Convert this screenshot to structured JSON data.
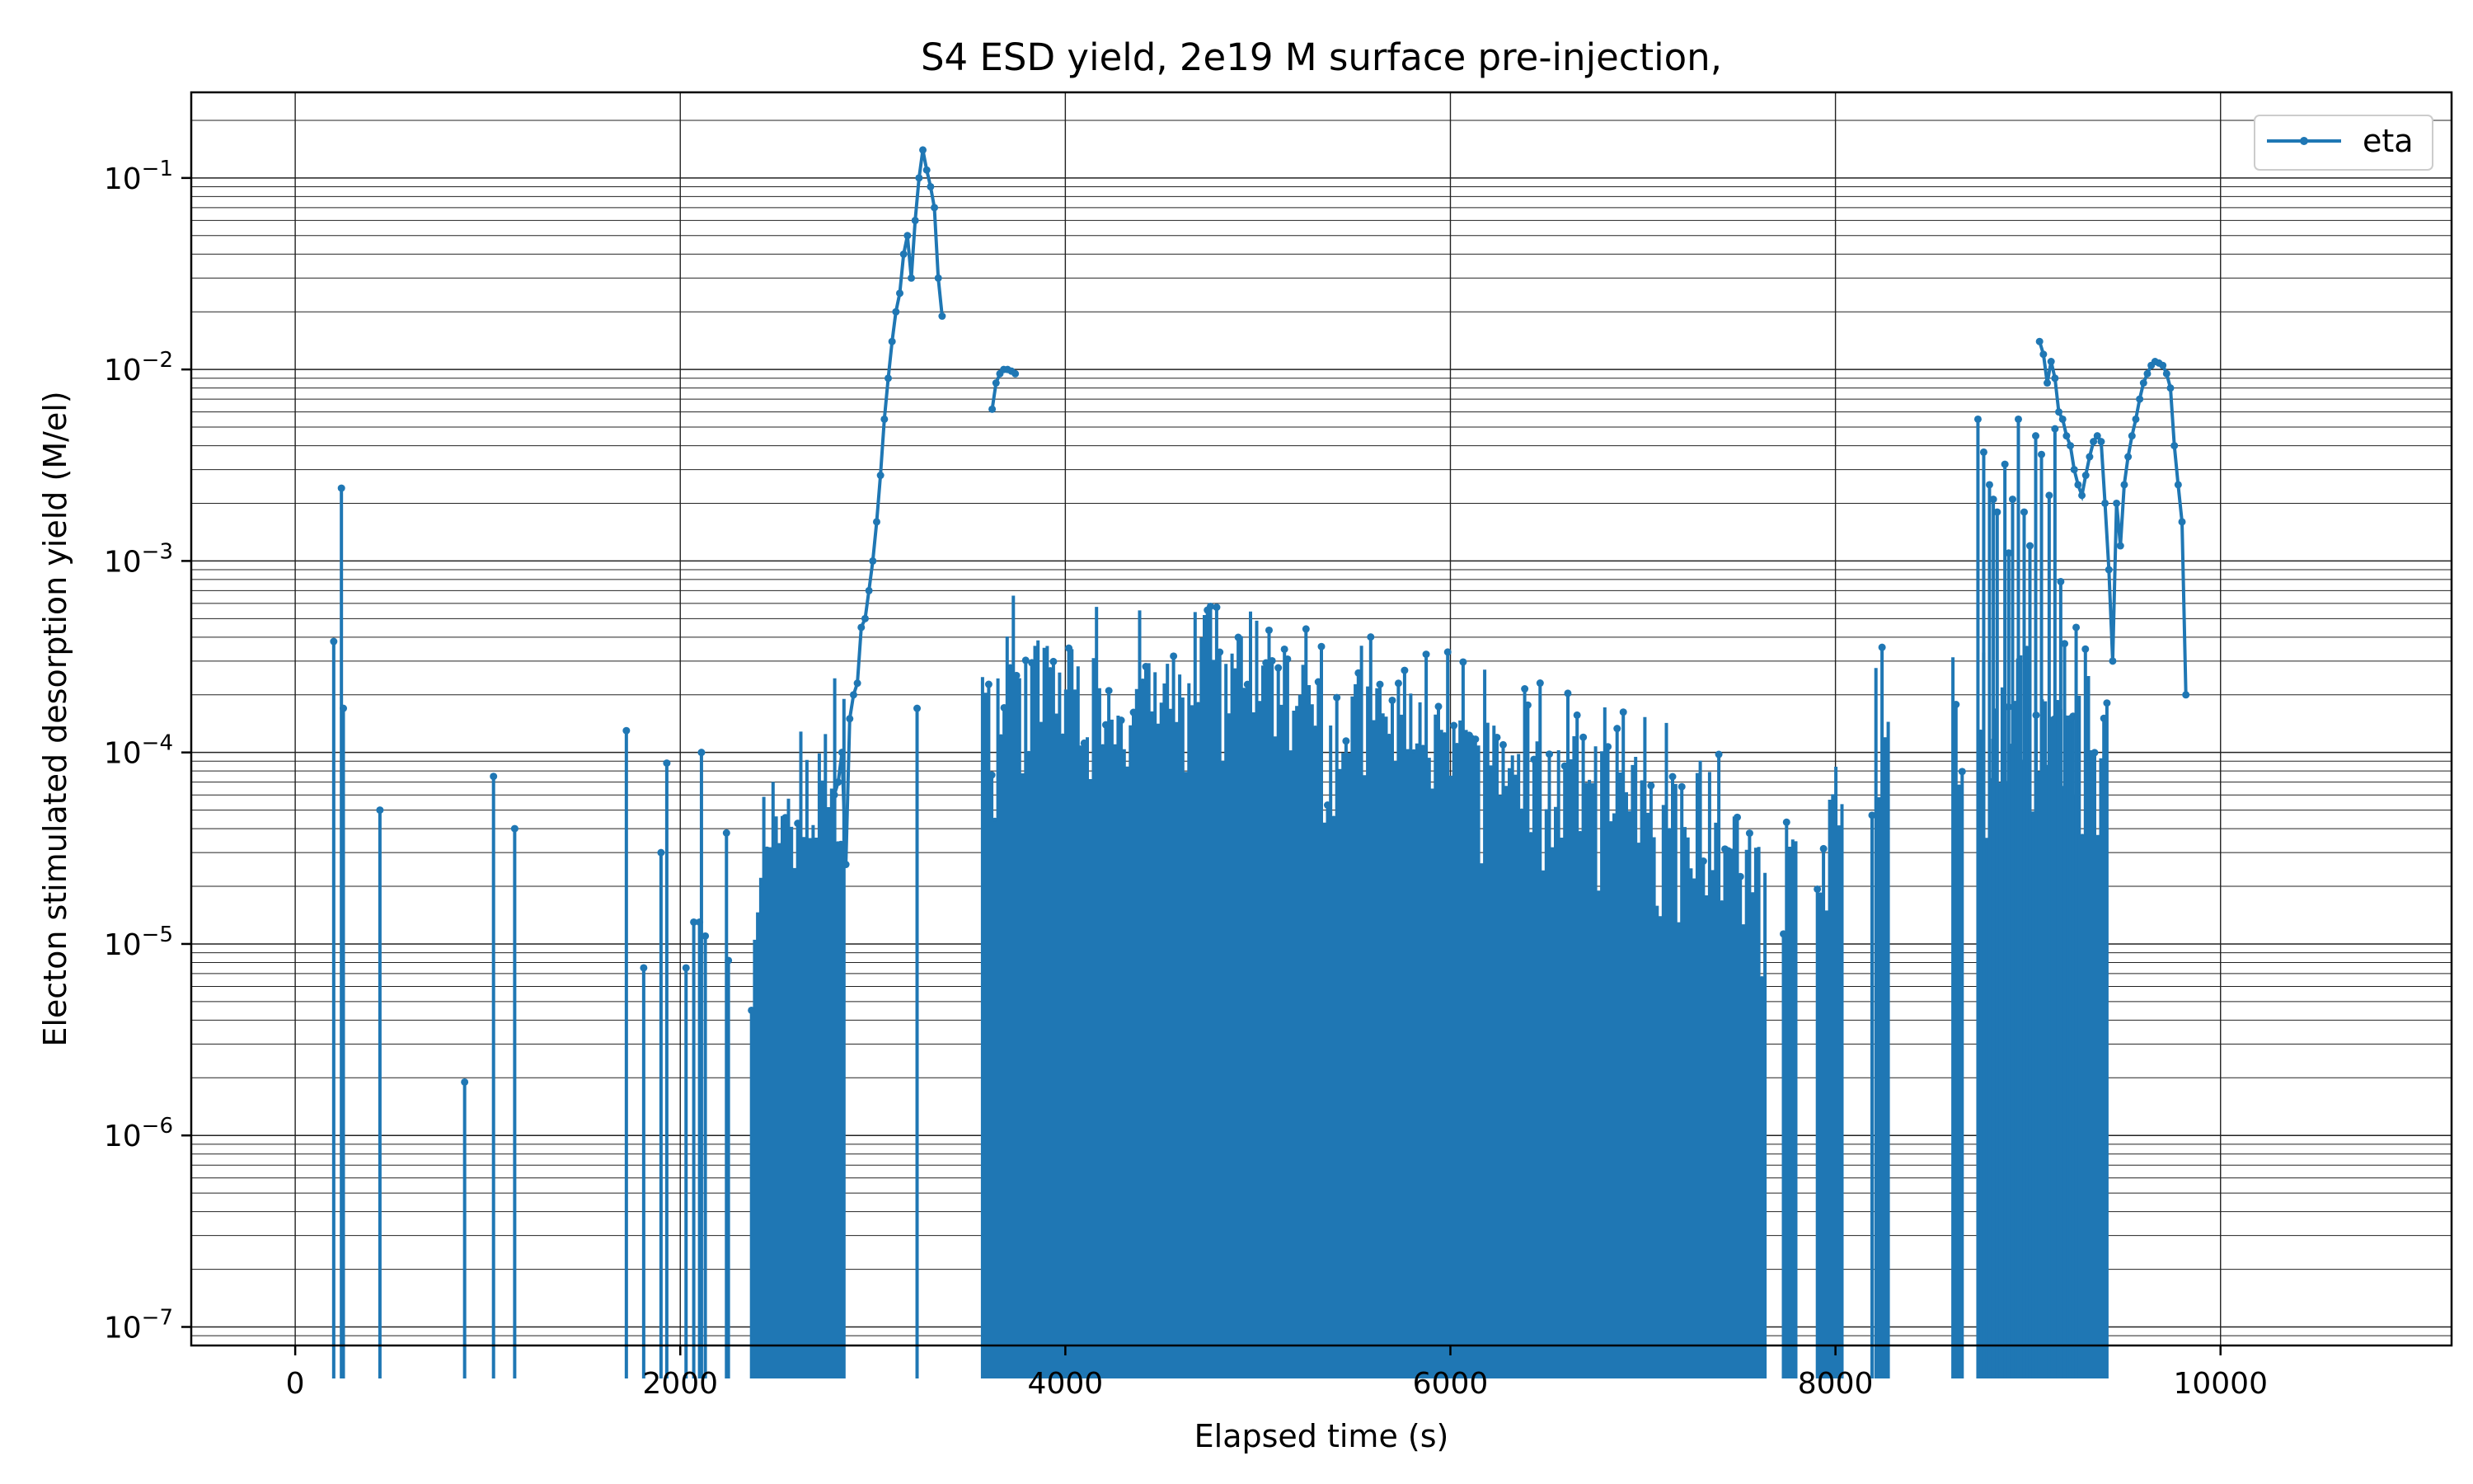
{
  "chart_data": {
    "type": "line",
    "title": "S4 ESD yield, 2e19 M surface pre-injection,",
    "xlabel": "Elapsed time (s)",
    "ylabel": "Electon stimulated desorption yield (M/el)",
    "xlim": [
      -540,
      11200
    ],
    "ylim": [
      8e-08,
      0.28
    ],
    "yscale": "log",
    "grid": "both-major-and-minor",
    "legend_position": "top-right",
    "series_color": "#1f77b4",
    "x_ticks": [
      {
        "value": 0,
        "label": "0"
      },
      {
        "value": 2000,
        "label": "2000"
      },
      {
        "value": 4000,
        "label": "4000"
      },
      {
        "value": 6000,
        "label": "6000"
      },
      {
        "value": 8000,
        "label": "8000"
      },
      {
        "value": 10000,
        "label": "10000"
      }
    ],
    "y_ticks": [
      {
        "exp": -7,
        "label": "10",
        "sup": "−7"
      },
      {
        "exp": -6,
        "label": "10",
        "sup": "−6"
      },
      {
        "exp": -5,
        "label": "10",
        "sup": "−5"
      },
      {
        "exp": -4,
        "label": "10",
        "sup": "−4"
      },
      {
        "exp": -3,
        "label": "10",
        "sup": "−3"
      },
      {
        "exp": -2,
        "label": "10",
        "sup": "−2"
      },
      {
        "exp": -1,
        "label": "10",
        "sup": "−1"
      }
    ],
    "series": [
      {
        "name": "eta",
        "marker": "dot",
        "spikes": [
          [
            200,
            0.00038
          ],
          [
            240,
            0.0024
          ],
          [
            250,
            0.00017
          ],
          [
            440,
            5e-05
          ],
          [
            880,
            1.9e-06
          ],
          [
            1030,
            7.5e-05
          ],
          [
            1140,
            4e-05
          ],
          [
            1720,
            0.00013
          ],
          [
            1810,
            7.5e-06
          ],
          [
            1900,
            3e-05
          ],
          [
            1930,
            8.8e-05
          ],
          [
            2030,
            7.5e-06
          ],
          [
            2070,
            1.3e-05
          ],
          [
            2100,
            1.3e-05
          ],
          [
            2110,
            0.0001
          ],
          [
            2130,
            1.1e-05
          ],
          [
            2240,
            3.8e-05
          ],
          [
            2250,
            8.2e-06
          ],
          [
            3230,
            0.00017
          ],
          [
            8190,
            4.7e-05
          ]
        ],
        "peak_1": [
          [
            2800,
            6e-05
          ],
          [
            2820,
            7e-05
          ],
          [
            2840,
            0.0001
          ],
          [
            2860,
            2.6e-05
          ],
          [
            2880,
            0.00015
          ],
          [
            2900,
            0.0002
          ],
          [
            2920,
            0.00023
          ],
          [
            2940,
            0.00045
          ],
          [
            2960,
            0.0005
          ],
          [
            2980,
            0.0007
          ],
          [
            3000,
            0.001
          ],
          [
            3020,
            0.0016
          ],
          [
            3040,
            0.0028
          ],
          [
            3060,
            0.0055
          ],
          [
            3080,
            0.009
          ],
          [
            3100,
            0.014
          ],
          [
            3120,
            0.02
          ],
          [
            3140,
            0.025
          ],
          [
            3160,
            0.04
          ],
          [
            3180,
            0.05
          ],
          [
            3200,
            0.03
          ],
          [
            3220,
            0.06
          ],
          [
            3240,
            0.1
          ],
          [
            3260,
            0.14
          ],
          [
            3280,
            0.11
          ],
          [
            3300,
            0.09
          ],
          [
            3320,
            0.07
          ],
          [
            3340,
            0.03
          ],
          [
            3360,
            0.019
          ]
        ],
        "burst_2": [
          [
            3620,
            0.0062
          ],
          [
            3640,
            0.0085
          ],
          [
            3660,
            0.0095
          ],
          [
            3680,
            0.01
          ],
          [
            3700,
            0.01
          ],
          [
            3720,
            0.0098
          ],
          [
            3740,
            0.0095
          ]
        ],
        "cluster_3": [
          [
            8740,
            0.0055
          ],
          [
            8770,
            0.0037
          ],
          [
            8800,
            0.0025
          ],
          [
            8820,
            0.0021
          ],
          [
            8840,
            0.0018
          ],
          [
            8880,
            0.0032
          ],
          [
            8900,
            0.0011
          ],
          [
            8920,
            0.0021
          ],
          [
            8950,
            0.0055
          ],
          [
            8980,
            0.0018
          ],
          [
            9010,
            0.0012
          ],
          [
            9040,
            0.0045
          ],
          [
            9070,
            0.0036
          ],
          [
            9110,
            0.0022
          ],
          [
            9140,
            0.0049
          ],
          [
            9170,
            0.00078
          ],
          [
            9190,
            0.00037
          ],
          [
            9220,
            0.00015
          ],
          [
            9250,
            0.00045
          ]
        ],
        "peak_4": [
          [
            9060,
            0.014
          ],
          [
            9080,
            0.012
          ],
          [
            9100,
            0.0085
          ],
          [
            9120,
            0.011
          ],
          [
            9140,
            0.009
          ],
          [
            9160,
            0.006
          ],
          [
            9180,
            0.0055
          ],
          [
            9200,
            0.0045
          ],
          [
            9220,
            0.004
          ],
          [
            9240,
            0.003
          ],
          [
            9260,
            0.0025
          ],
          [
            9280,
            0.0022
          ],
          [
            9300,
            0.0028
          ],
          [
            9320,
            0.0035
          ],
          [
            9340,
            0.0042
          ],
          [
            9360,
            0.0045
          ],
          [
            9380,
            0.0042
          ],
          [
            9400,
            0.002
          ],
          [
            9420,
            0.0009
          ],
          [
            9440,
            0.0003
          ],
          [
            9460,
            0.002
          ],
          [
            9480,
            0.0012
          ],
          [
            9500,
            0.0025
          ],
          [
            9520,
            0.0035
          ],
          [
            9540,
            0.0045
          ],
          [
            9560,
            0.0055
          ],
          [
            9580,
            0.007
          ],
          [
            9600,
            0.0085
          ],
          [
            9620,
            0.0095
          ],
          [
            9640,
            0.0105
          ],
          [
            9660,
            0.011
          ],
          [
            9680,
            0.0108
          ],
          [
            9700,
            0.0105
          ],
          [
            9720,
            0.0095
          ],
          [
            9740,
            0.008
          ],
          [
            9760,
            0.004
          ],
          [
            9780,
            0.0025
          ],
          [
            9800,
            0.0016
          ],
          [
            9820,
            0.0002
          ]
        ],
        "dense_band": {
          "x_range": [
            2370,
            9420
          ],
          "sample_step": 16,
          "envelope": [
            [
              2370,
              3e-05
            ],
            [
              2500,
              5e-05
            ],
            [
              2700,
              0.0001
            ],
            [
              2780,
              0.00015
            ],
            [
              3560,
              0.0002
            ],
            [
              3700,
              0.0004
            ],
            [
              3900,
              0.0004
            ],
            [
              4300,
              0.0003
            ],
            [
              4800,
              0.00035
            ],
            [
              5200,
              0.0003
            ],
            [
              5700,
              0.00025
            ],
            [
              6200,
              0.00015
            ],
            [
              6700,
              0.00012
            ],
            [
              7200,
              8e-05
            ],
            [
              7600,
              4e-05
            ],
            [
              7900,
              4e-05
            ],
            [
              8200,
              0.0002
            ],
            [
              8300,
              0.0002
            ]
          ],
          "gaps": [
            [
              2860,
              3560
            ],
            [
              7650,
              7720
            ],
            [
              7800,
              7900
            ],
            [
              8050,
              8200
            ],
            [
              8280,
              8600
            ],
            [
              8660,
              8740
            ]
          ],
          "floor": 8e-08
        }
      }
    ]
  }
}
